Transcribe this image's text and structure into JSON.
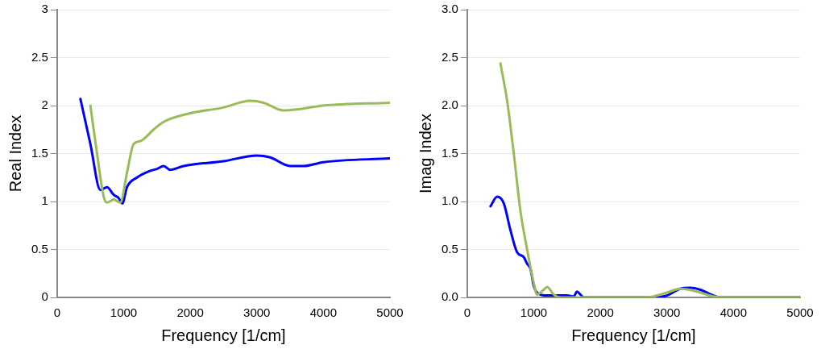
{
  "chart_data": [
    {
      "type": "line",
      "xlabel": "Frequency [1/cm]",
      "ylabel": "Real Index",
      "xlim": [
        0,
        5000
      ],
      "xticks": [
        0,
        1000,
        2000,
        3000,
        4000,
        5000
      ],
      "ylim": [
        0,
        3
      ],
      "yticks": [
        0,
        0.5,
        1,
        1.5,
        2,
        2.5,
        3
      ],
      "grid": "y",
      "legend": false,
      "marker": "none",
      "series": [
        {
          "color": "#9bbb59",
          "x": [
            500,
            600,
            700,
            750,
            850,
            950,
            1050,
            1150,
            1250,
            1300,
            1450,
            1600,
            2000,
            2500,
            2900,
            3100,
            3400,
            3600,
            4000,
            5000
          ],
          "values": [
            2.0,
            1.5,
            1.05,
            0.99,
            1.02,
            0.99,
            1.3,
            1.6,
            1.63,
            1.65,
            1.75,
            1.83,
            1.92,
            1.98,
            2.05,
            2.03,
            1.95,
            1.96,
            2.0,
            2.03
          ]
        },
        {
          "color": "#0000ff",
          "x": [
            350,
            500,
            650,
            750,
            850,
            920,
            980,
            1050,
            1200,
            1400,
            1500,
            1600,
            1700,
            1900,
            2500,
            3000,
            3200,
            3500,
            3700,
            4000,
            5000
          ],
          "values": [
            2.07,
            1.6,
            1.12,
            1.15,
            1.07,
            1.04,
            0.98,
            1.15,
            1.25,
            1.32,
            1.34,
            1.37,
            1.33,
            1.37,
            1.42,
            1.48,
            1.46,
            1.37,
            1.37,
            1.41,
            1.45
          ]
        }
      ]
    },
    {
      "type": "line",
      "xlabel": "Frequency [1/cm]",
      "ylabel": "Imag Index",
      "xlim": [
        0,
        5000
      ],
      "xticks": [
        0,
        1000,
        2000,
        3000,
        4000,
        5000
      ],
      "ylim": [
        0,
        3
      ],
      "yticks": [
        {
          "value": 0,
          "label": "0.0"
        },
        0.5,
        {
          "value": 1,
          "label": "1.0"
        },
        1.5,
        {
          "value": 2,
          "label": "2.0"
        },
        2.5,
        {
          "value": 3,
          "label": "3.0"
        }
      ],
      "grid": "y",
      "legend": false,
      "marker": "none",
      "series": [
        {
          "color": "#9bbb59",
          "x": [
            500,
            600,
            700,
            800,
            900,
            1000,
            1050,
            1150,
            1200,
            1300,
            1400,
            2700,
            3000,
            3200,
            3400,
            3700,
            3800,
            5000
          ],
          "values": [
            2.44,
            2.05,
            1.5,
            0.9,
            0.5,
            0.15,
            0.03,
            0.08,
            0.11,
            0.03,
            0,
            0,
            0.05,
            0.09,
            0.07,
            0.01,
            0,
            0
          ]
        },
        {
          "color": "#0000ff",
          "x": [
            350,
            450,
            550,
            650,
            750,
            850,
            900,
            950,
            1000,
            1050,
            1200,
            1500,
            1600,
            1650,
            1700,
            1750,
            2800,
            3000,
            3200,
            3350,
            3500,
            3700,
            3800,
            5000
          ],
          "values": [
            0.95,
            1.05,
            0.98,
            0.7,
            0.47,
            0.42,
            0.35,
            0.3,
            0.12,
            0.05,
            0.02,
            0.02,
            0.01,
            0.06,
            0.03,
            0,
            0,
            0.02,
            0.09,
            0.1,
            0.08,
            0.02,
            0,
            0
          ]
        }
      ]
    }
  ]
}
